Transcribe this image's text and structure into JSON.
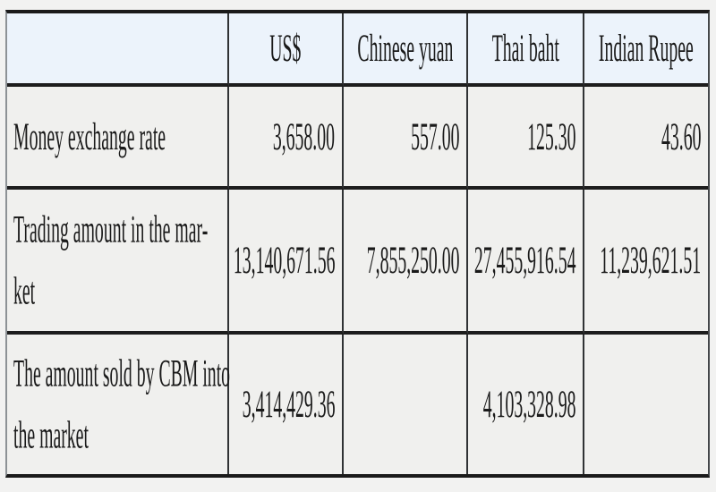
{
  "page": {
    "background": "#f2f2f1",
    "description_colors": {
      "header_bg": "#ecf3fb",
      "body_cell_bg": "#f0f0ee",
      "horizontal_rule": "#1d1d1d",
      "vertical_rule": "#303234",
      "outer_left_border": "#8d9296",
      "text": "#1a1a1a"
    }
  },
  "table": {
    "columns": [
      "",
      "US$",
      "Chinese yuan",
      "Thai baht",
      "Indian Rupee"
    ],
    "rows": [
      {
        "label": "Money exchange rate",
        "values": [
          "3,658.00",
          "557.00",
          "125.30",
          "43.60"
        ]
      },
      {
        "label": "Trading amount in the mar-\nket",
        "values": [
          "13,140,671.56",
          "7,855,250.00",
          "27,455,916.54",
          "11,239,621.51"
        ]
      },
      {
        "label": "The amount sold by CBM into\nthe market",
        "values": [
          "3,414,429.36",
          "",
          "4,103,328.98",
          ""
        ]
      }
    ]
  },
  "chart_data": {
    "type": "table",
    "columns": [
      "",
      "US$",
      "Chinese yuan",
      "Thai baht",
      "Indian Rupee"
    ],
    "rows": [
      [
        "Money exchange rate",
        "3,658.00",
        "557.00",
        "125.30",
        "43.60"
      ],
      [
        "Trading amount in the market",
        "13,140,671.56",
        "7,855,250.00",
        "27,455,916.54",
        "11,239,621.51"
      ],
      [
        "The amount sold by CBM into the market",
        "3,414,429.36",
        "",
        "4,103,328.98",
        ""
      ]
    ]
  }
}
